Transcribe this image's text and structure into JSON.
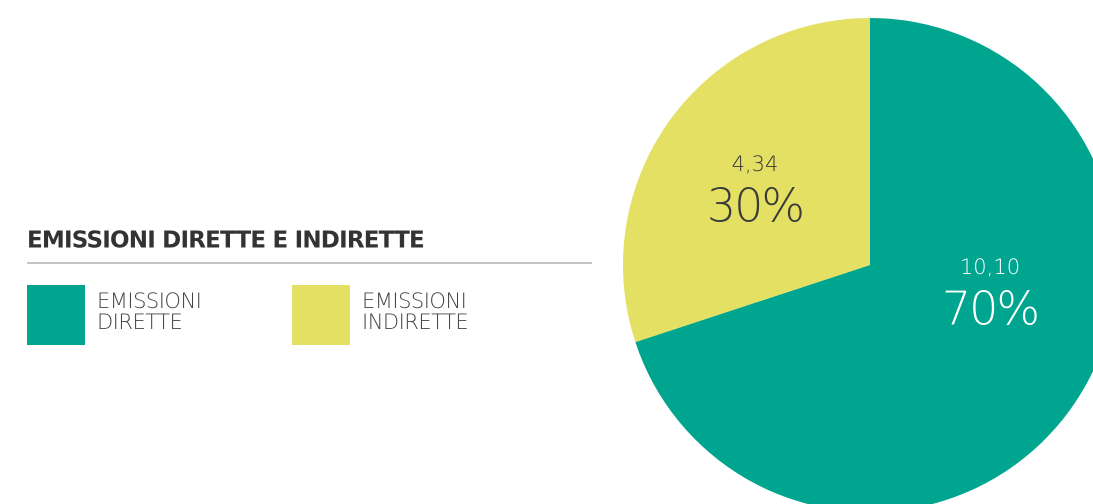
{
  "chart_data": {
    "type": "pie",
    "title": "EMISSIONI DIRETTE E INDIRETTE",
    "categories": [
      "EMISSIONI DIRETTE",
      "EMISSIONI INDIRETTE"
    ],
    "values": [
      10.1,
      4.34
    ],
    "value_labels": [
      "10,10",
      "4,34"
    ],
    "percentages": [
      70,
      30
    ],
    "percentage_labels": [
      "70%",
      "30%"
    ],
    "colors": [
      "#00a590",
      "#e3e064"
    ],
    "label_colors": [
      "#ffffff",
      "#3a3a3a"
    ],
    "legend": "left"
  }
}
